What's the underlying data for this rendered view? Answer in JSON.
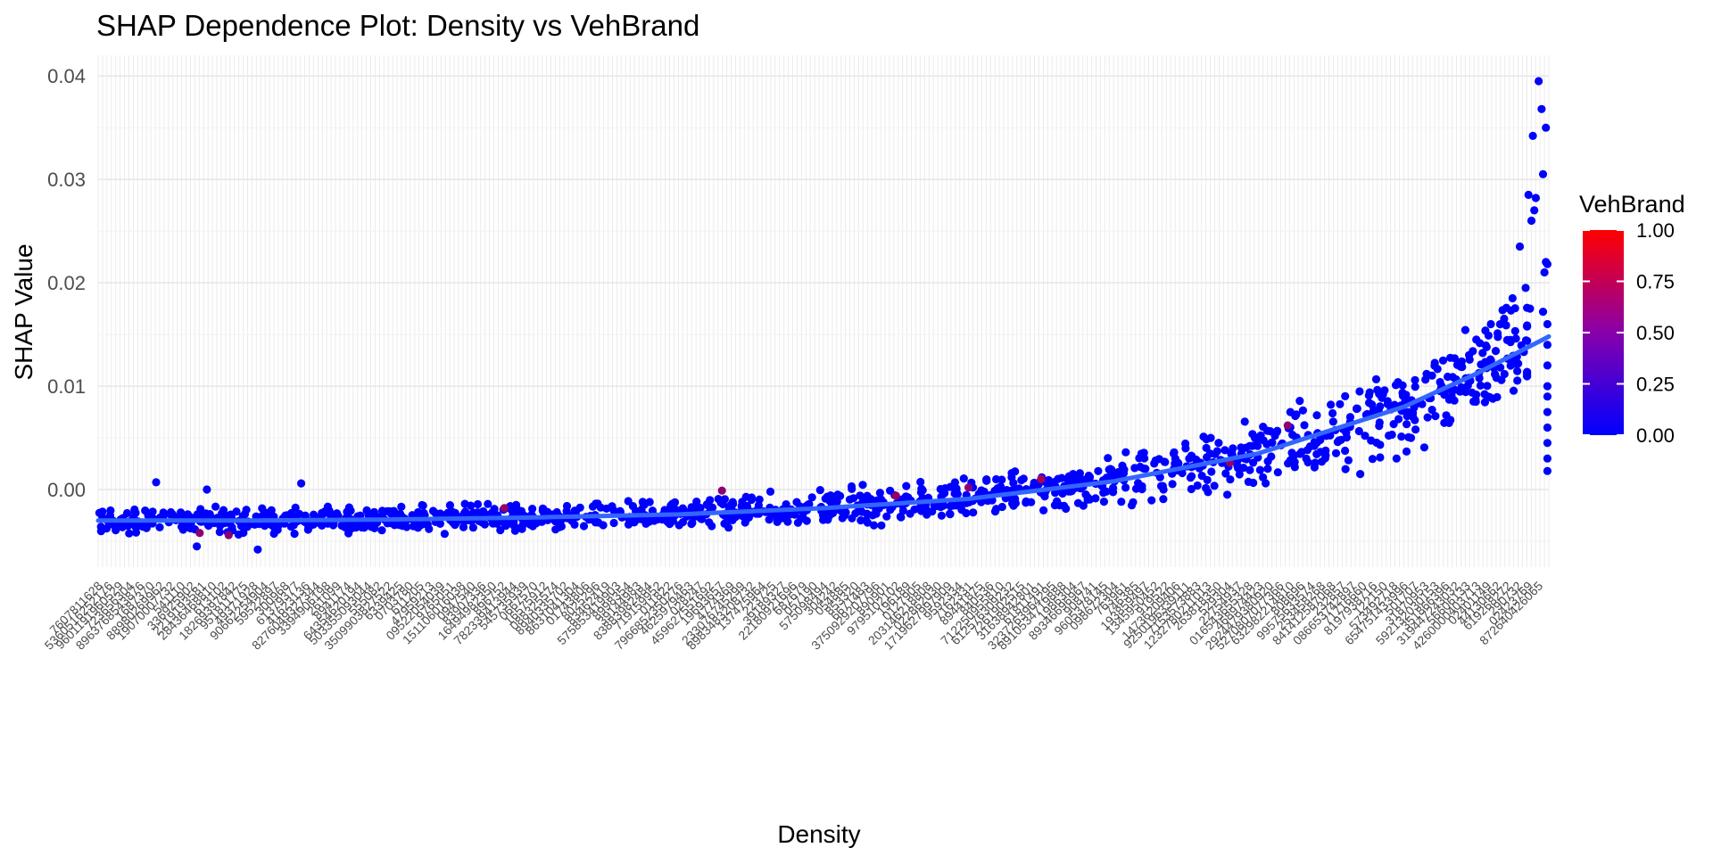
{
  "chart_data": {
    "type": "scatter",
    "title": "SHAP Dependence Plot: Density vs VehBrand",
    "xlabel": "Density",
    "ylabel": "SHAP Value",
    "x_axis": "categorical",
    "x_tick_labels_legible": false,
    "ylim": [
      -0.0075,
      0.042
    ],
    "yticks": [
      0.0,
      0.01,
      0.02,
      0.03,
      0.04
    ],
    "ytick_labels": [
      "0.00",
      "0.01",
      "0.02",
      "0.03",
      "0.04"
    ],
    "grid": true,
    "legend": {
      "title": "VehBrand",
      "type": "colorbar",
      "position": "right",
      "range": [
        0.0,
        1.0
      ],
      "ticks": [
        "0.00",
        "0.25",
        "0.50",
        "0.75",
        "1.00"
      ],
      "low_color": "#0000ff",
      "high_color": "#ff0000"
    },
    "point_color": "#0000ff",
    "smooth_color": "#3366ff",
    "trend": [
      {
        "x": 0.0,
        "y": -0.003
      },
      {
        "x": 0.1,
        "y": -0.003
      },
      {
        "x": 0.2,
        "y": -0.0029
      },
      {
        "x": 0.3,
        "y": -0.0027
      },
      {
        "x": 0.4,
        "y": -0.0024
      },
      {
        "x": 0.5,
        "y": -0.0018
      },
      {
        "x": 0.6,
        "y": -0.0009
      },
      {
        "x": 0.7,
        "y": 0.0008
      },
      {
        "x": 0.8,
        "y": 0.0035
      },
      {
        "x": 0.9,
        "y": 0.008
      },
      {
        "x": 0.95,
        "y": 0.0112
      },
      {
        "x": 1.0,
        "y": 0.0148
      }
    ],
    "highlights": [
      {
        "x": 0.07,
        "y": -0.0042,
        "color": 0.55
      },
      {
        "x": 0.09,
        "y": -0.0044,
        "color": 0.55
      },
      {
        "x": 0.28,
        "y": -0.0018,
        "color": 0.6
      },
      {
        "x": 0.43,
        "y": -0.0001,
        "color": 0.55
      },
      {
        "x": 0.55,
        "y": -0.0006,
        "color": 0.6
      },
      {
        "x": 0.6,
        "y": 0.0002,
        "color": 0.55
      },
      {
        "x": 0.65,
        "y": 0.001,
        "color": 0.7
      },
      {
        "x": 0.78,
        "y": 0.0026,
        "color": 0.6
      },
      {
        "x": 0.82,
        "y": 0.0062,
        "color": 0.55
      }
    ],
    "extremes": [
      {
        "x": 0.993,
        "y": 0.0395
      },
      {
        "x": 0.995,
        "y": 0.0368
      },
      {
        "x": 0.998,
        "y": 0.035
      },
      {
        "x": 0.989,
        "y": 0.0342
      },
      {
        "x": 0.996,
        "y": 0.0305
      },
      {
        "x": 0.986,
        "y": 0.0285
      },
      {
        "x": 0.991,
        "y": 0.0282
      },
      {
        "x": 0.99,
        "y": 0.027
      },
      {
        "x": 0.988,
        "y": 0.026
      },
      {
        "x": 0.98,
        "y": 0.0235
      },
      {
        "x": 0.998,
        "y": 0.022
      },
      {
        "x": 0.999,
        "y": 0.0218
      },
      {
        "x": 0.997,
        "y": 0.021
      },
      {
        "x": 0.984,
        "y": 0.0195
      },
      {
        "x": 0.975,
        "y": 0.0185
      },
      {
        "x": 0.987,
        "y": 0.0175
      },
      {
        "x": 0.996,
        "y": 0.0172
      },
      {
        "x": 0.999,
        "y": 0.016
      },
      {
        "x": 0.999,
        "y": 0.012
      },
      {
        "x": 0.999,
        "y": 0.009
      },
      {
        "x": 0.999,
        "y": 0.0075
      },
      {
        "x": 0.999,
        "y": 0.006
      },
      {
        "x": 0.999,
        "y": 0.0045
      },
      {
        "x": 0.999,
        "y": 0.003
      },
      {
        "x": 0.999,
        "y": 0.0018
      },
      {
        "x": 0.999,
        "y": 0.01
      },
      {
        "x": 0.999,
        "y": 0.014
      },
      {
        "x": 0.96,
        "y": 0.016
      },
      {
        "x": 0.95,
        "y": 0.0145
      },
      {
        "x": 0.945,
        "y": 0.013
      },
      {
        "x": 0.958,
        "y": 0.009
      },
      {
        "x": 0.905,
        "y": 0.005
      },
      {
        "x": 0.87,
        "y": 0.0015
      },
      {
        "x": 0.895,
        "y": 0.003
      },
      {
        "x": 0.04,
        "y": 0.0007
      },
      {
        "x": 0.075,
        "y": 0.0
      },
      {
        "x": 0.14,
        "y": 0.0006
      },
      {
        "x": 0.11,
        "y": -0.0058
      },
      {
        "x": 0.068,
        "y": -0.0055
      }
    ]
  }
}
